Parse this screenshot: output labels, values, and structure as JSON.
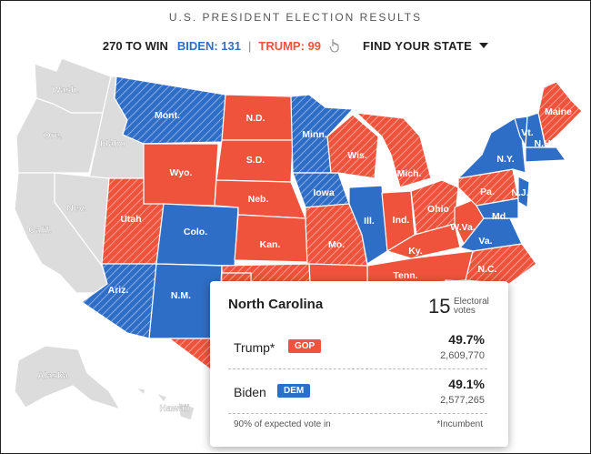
{
  "header": {
    "title": "U.S. PRESIDENT ELECTION RESULTS"
  },
  "scorebar": {
    "to_win": "270 TO WIN",
    "biden": "BIDEN: 131",
    "separator": "|",
    "trump": "TRUMP: 99",
    "find_state": "FIND YOUR STATE",
    "hand_icon": "hand-pointer-icon"
  },
  "colors": {
    "dem": "#2f6ec7",
    "gop": "#f0533c",
    "undecided": "#dcdcdc"
  },
  "states": [
    {
      "abbr": "Wash.",
      "status": "undecided"
    },
    {
      "abbr": "Ore.",
      "status": "undecided"
    },
    {
      "abbr": "Idaho",
      "status": "undecided"
    },
    {
      "abbr": "Calif.",
      "status": "undecided"
    },
    {
      "abbr": "Nev.",
      "status": "undecided"
    },
    {
      "abbr": "Mont.",
      "status": "lean-dem"
    },
    {
      "abbr": "Wyo.",
      "status": "gop"
    },
    {
      "abbr": "Utah",
      "status": "lean-gop"
    },
    {
      "abbr": "Colo.",
      "status": "dem"
    },
    {
      "abbr": "Ariz.",
      "status": "lean-dem"
    },
    {
      "abbr": "N.M.",
      "status": "dem"
    },
    {
      "abbr": "N.D.",
      "status": "gop"
    },
    {
      "abbr": "S.D.",
      "status": "gop"
    },
    {
      "abbr": "Neb.",
      "status": "gop"
    },
    {
      "abbr": "Kan.",
      "status": "gop"
    },
    {
      "abbr": "Minn.",
      "status": "lean-dem"
    },
    {
      "abbr": "Iowa",
      "status": "lean-dem"
    },
    {
      "abbr": "Mo.",
      "status": "lean-gop"
    },
    {
      "abbr": "Wis.",
      "status": "lean-gop"
    },
    {
      "abbr": "Ill.",
      "status": "dem"
    },
    {
      "abbr": "Mich.",
      "status": "lean-gop"
    },
    {
      "abbr": "Ind.",
      "status": "gop"
    },
    {
      "abbr": "Ohio",
      "status": "lean-gop"
    },
    {
      "abbr": "Ky.",
      "status": "gop"
    },
    {
      "abbr": "Tenn.",
      "status": "gop"
    },
    {
      "abbr": "W.Va.",
      "status": "gop"
    },
    {
      "abbr": "Va.",
      "status": "dem"
    },
    {
      "abbr": "Pa.",
      "status": "lean-gop"
    },
    {
      "abbr": "N.Y.",
      "status": "dem"
    },
    {
      "abbr": "Vt.",
      "status": "dem"
    },
    {
      "abbr": "N.H.",
      "status": "dem"
    },
    {
      "abbr": "Maine",
      "status": "lean-gop"
    },
    {
      "abbr": "N.J.",
      "status": "dem"
    },
    {
      "abbr": "Md.",
      "status": "dem"
    },
    {
      "abbr": "N.C.",
      "status": "lean-gop"
    },
    {
      "abbr": "Alaska",
      "status": "undecided"
    },
    {
      "abbr": "Hawaii",
      "status": "undecided"
    }
  ],
  "popup": {
    "state": "North Carolina",
    "electoral_votes": "15",
    "electoral_label_1": "Electoral",
    "electoral_label_2": "votes",
    "candidates": [
      {
        "name": "Trump*",
        "party": "GOP",
        "pct": "49.7%",
        "votes": "2,609,770"
      },
      {
        "name": "Biden",
        "party": "DEM",
        "pct": "49.1%",
        "votes": "2,577,265"
      }
    ],
    "expected": "90% of expected vote in",
    "incumbent_note": "*Incumbent"
  }
}
